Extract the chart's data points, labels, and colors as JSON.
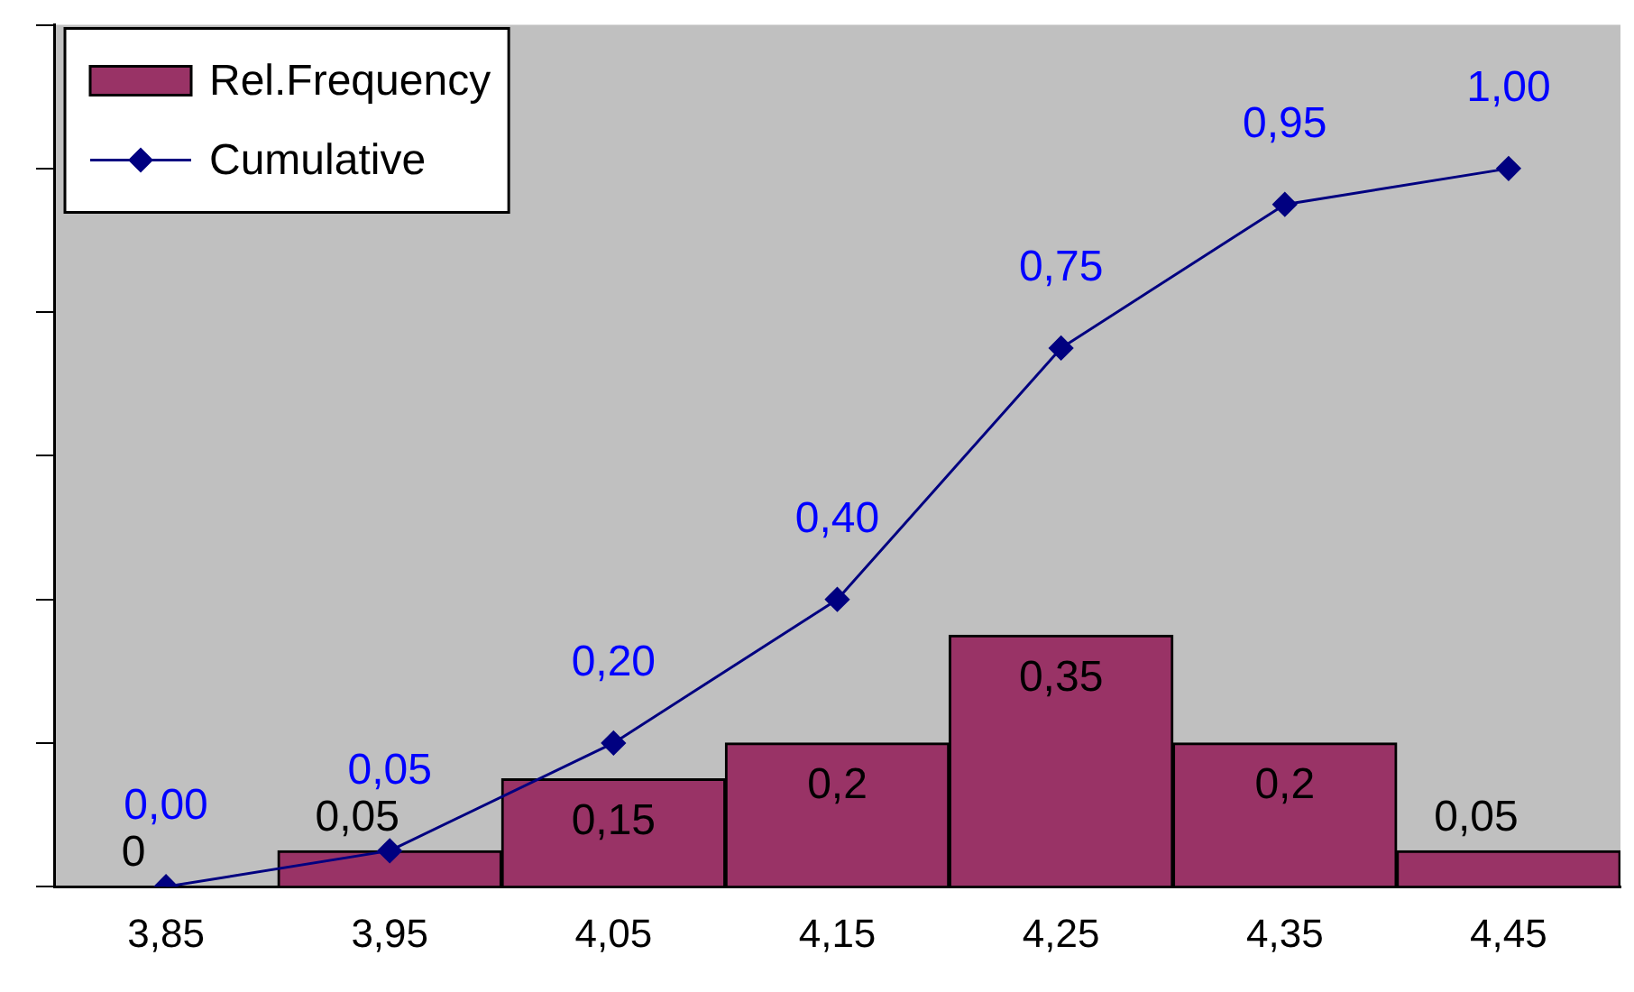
{
  "chart_data": {
    "type": "bar",
    "categories": [
      "3,85",
      "3,95",
      "4,05",
      "4,15",
      "4,25",
      "4,35",
      "4,45"
    ],
    "series": [
      {
        "name": "Rel.Frequency",
        "color": "#993366",
        "values": [
          0,
          0.05,
          0.15,
          0.2,
          0.35,
          0.2,
          0.05
        ],
        "value_labels": [
          "0",
          "0,05",
          "0,15",
          "0,2",
          "0,35",
          "0,2",
          "0,05"
        ]
      },
      {
        "name": "Cumulative",
        "type": "line",
        "color": "#000080",
        "marker": "diamond",
        "values": [
          0,
          0.05,
          0.2,
          0.4,
          0.75,
          0.95,
          1.0
        ],
        "value_labels": [
          "0,00",
          "0,05",
          "0,20",
          "0,40",
          "0,75",
          "0,95",
          "1,00"
        ]
      }
    ],
    "ylim": [
      0,
      1.2
    ],
    "yticks": [
      {
        "value": 0,
        "label": null
      },
      {
        "value": 0.2,
        "label": null
      },
      {
        "value": 0.4,
        "label": null
      },
      {
        "value": 0.6,
        "label": null
      },
      {
        "value": 0.8,
        "label": null
      },
      {
        "value": 1.0,
        "label": null
      },
      {
        "value": 1.2,
        "label": null
      }
    ],
    "tick_labels": "x",
    "grid": false,
    "legend": "top left"
  }
}
